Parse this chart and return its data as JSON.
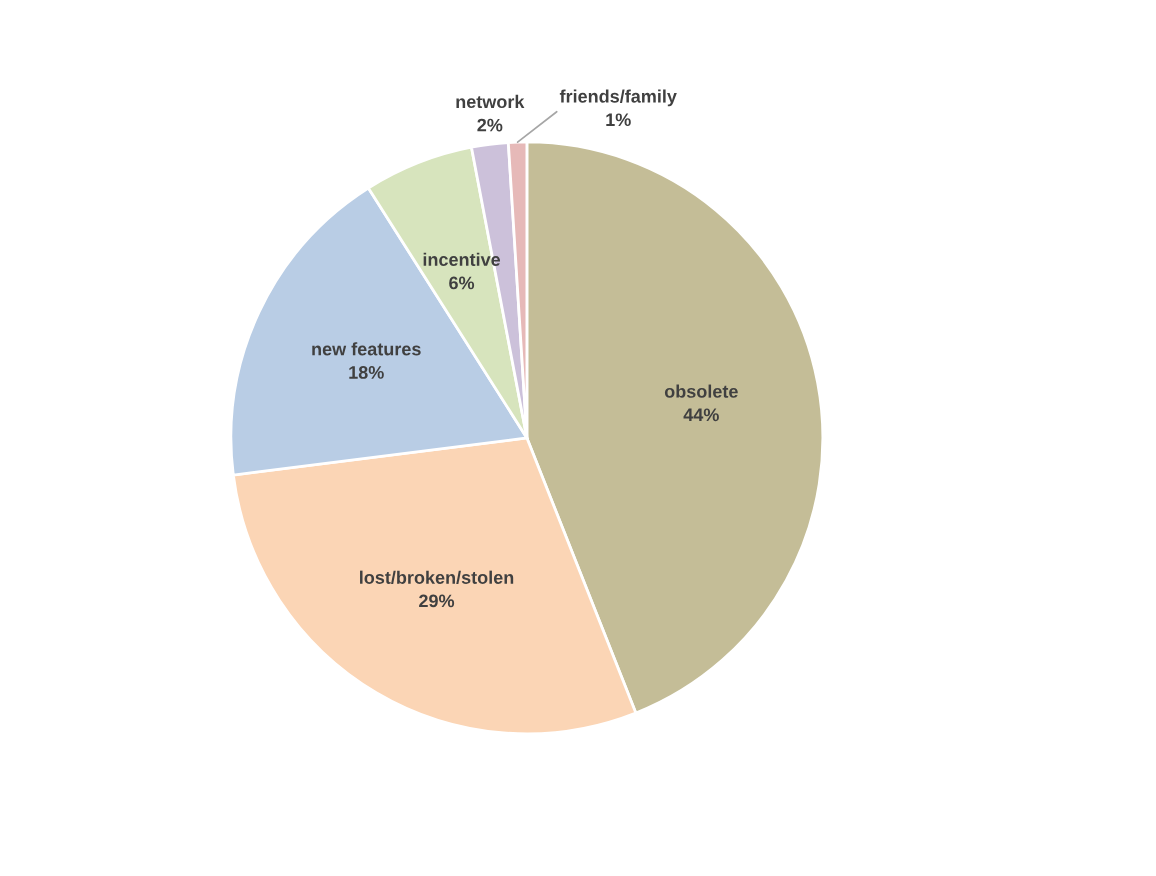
{
  "chart_data": {
    "type": "pie",
    "categories": [
      "obsolete",
      "lost/broken/stolen",
      "new features",
      "incentive",
      "network",
      "friends/family"
    ],
    "values": [
      44,
      29,
      18,
      6,
      2,
      1
    ],
    "colors": [
      "#c4bd97",
      "#fbd5b5",
      "#b9cde5",
      "#d7e4bd",
      "#ccc1da",
      "#e6b9b8"
    ],
    "value_labels": [
      "44%",
      "29%",
      "18%",
      "6%",
      "2%",
      "1%"
    ],
    "legend": false
  }
}
